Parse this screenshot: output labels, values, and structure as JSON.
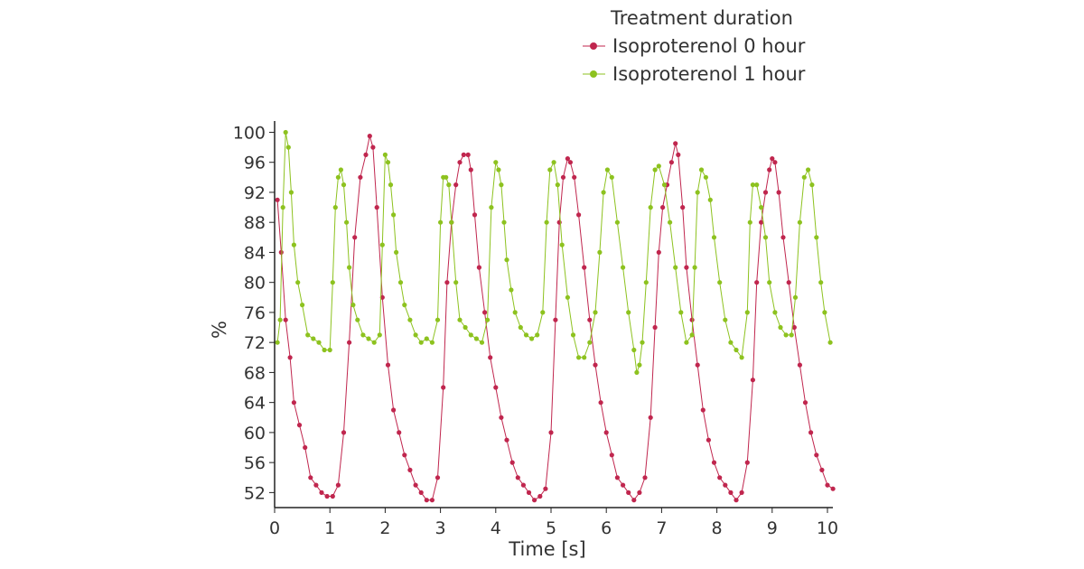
{
  "chart_data": {
    "type": "scatter",
    "title": "",
    "xlabel": "Time [s]",
    "ylabel": "%",
    "xlim": [
      0,
      10.2
    ],
    "ylim": [
      50,
      101.5
    ],
    "xticks": [
      "0",
      "1",
      "2",
      "3",
      "4",
      "5",
      "6",
      "7",
      "8",
      "9",
      "10"
    ],
    "yticks": [
      "52",
      "56",
      "60",
      "64",
      "68",
      "72",
      "76",
      "80",
      "84",
      "88",
      "92",
      "96",
      "100"
    ],
    "grid": false,
    "legend": {
      "title": "Treatment duration",
      "position": "top-right"
    },
    "series": [
      {
        "name": "Isoproterenol 0 hour",
        "color": "#C0264E",
        "x": [
          0.05,
          0.12,
          0.2,
          0.28,
          0.35,
          0.45,
          0.55,
          0.65,
          0.75,
          0.85,
          0.95,
          1.05,
          1.15,
          1.25,
          1.35,
          1.45,
          1.55,
          1.65,
          1.72,
          1.78,
          1.85,
          1.95,
          2.05,
          2.15,
          2.25,
          2.35,
          2.45,
          2.55,
          2.65,
          2.75,
          2.85,
          2.95,
          3.05,
          3.12,
          3.2,
          3.28,
          3.35,
          3.42,
          3.5,
          3.55,
          3.62,
          3.7,
          3.8,
          3.9,
          4.0,
          4.1,
          4.2,
          4.3,
          4.4,
          4.5,
          4.6,
          4.7,
          4.8,
          4.9,
          5.0,
          5.08,
          5.15,
          5.22,
          5.3,
          5.35,
          5.42,
          5.5,
          5.6,
          5.7,
          5.8,
          5.9,
          6.0,
          6.1,
          6.2,
          6.3,
          6.4,
          6.5,
          6.6,
          6.7,
          6.8,
          6.88,
          6.95,
          7.02,
          7.1,
          7.18,
          7.25,
          7.3,
          7.38,
          7.45,
          7.55,
          7.65,
          7.75,
          7.85,
          7.95,
          8.05,
          8.15,
          8.25,
          8.35,
          8.45,
          8.55,
          8.65,
          8.72,
          8.8,
          8.88,
          8.95,
          9.0,
          9.05,
          9.12,
          9.2,
          9.3,
          9.4,
          9.5,
          9.6,
          9.7,
          9.8,
          9.9,
          10.0,
          10.1
        ],
        "values": [
          91,
          84,
          75,
          70,
          64,
          61,
          58,
          54,
          53,
          52,
          51.5,
          51.5,
          53,
          60,
          72,
          86,
          94,
          97,
          99.5,
          98,
          90,
          78,
          69,
          63,
          60,
          57,
          55,
          53,
          52,
          51,
          51,
          54,
          66,
          80,
          88,
          93,
          96,
          97,
          97,
          95,
          89,
          82,
          76,
          70,
          66,
          62,
          59,
          56,
          54,
          53,
          52,
          51,
          51.5,
          52.5,
          60,
          75,
          88,
          94,
          96.5,
          96,
          94,
          89,
          82,
          75,
          69,
          64,
          60,
          57,
          54,
          53,
          52,
          51,
          52,
          54,
          62,
          74,
          84,
          90,
          93,
          96,
          98.5,
          97,
          90,
          82,
          75,
          69,
          63,
          59,
          56,
          54,
          53,
          52,
          51,
          52,
          56,
          67,
          80,
          88,
          92,
          95,
          96.5,
          96,
          92,
          86,
          80,
          74,
          69,
          64,
          60,
          57,
          55,
          53,
          52.5
        ]
      },
      {
        "name": "Isoproterenol 1 hour",
        "color": "#8DC21F",
        "x": [
          0.05,
          0.1,
          0.15,
          0.2,
          0.25,
          0.3,
          0.35,
          0.42,
          0.5,
          0.6,
          0.7,
          0.8,
          0.9,
          1.0,
          1.05,
          1.1,
          1.15,
          1.2,
          1.25,
          1.3,
          1.35,
          1.42,
          1.5,
          1.6,
          1.7,
          1.8,
          1.9,
          1.95,
          2.0,
          2.05,
          2.1,
          2.15,
          2.2,
          2.28,
          2.35,
          2.45,
          2.55,
          2.65,
          2.75,
          2.85,
          2.95,
          3.0,
          3.05,
          3.1,
          3.15,
          3.2,
          3.28,
          3.35,
          3.45,
          3.55,
          3.65,
          3.75,
          3.85,
          3.92,
          4.0,
          4.05,
          4.1,
          4.15,
          4.2,
          4.28,
          4.35,
          4.45,
          4.55,
          4.65,
          4.75,
          4.85,
          4.92,
          4.98,
          5.05,
          5.12,
          5.2,
          5.3,
          5.4,
          5.5,
          5.6,
          5.7,
          5.8,
          5.88,
          5.95,
          6.02,
          6.1,
          6.2,
          6.3,
          6.4,
          6.5,
          6.55,
          6.6,
          6.65,
          6.72,
          6.8,
          6.88,
          6.95,
          7.05,
          7.15,
          7.25,
          7.35,
          7.45,
          7.55,
          7.6,
          7.65,
          7.72,
          7.8,
          7.88,
          7.95,
          8.05,
          8.15,
          8.25,
          8.35,
          8.45,
          8.55,
          8.6,
          8.65,
          8.72,
          8.8,
          8.88,
          8.95,
          9.05,
          9.15,
          9.25,
          9.35,
          9.42,
          9.5,
          9.58,
          9.65,
          9.72,
          9.8,
          9.88,
          9.95,
          10.05
        ],
        "values": [
          72,
          75,
          90,
          100,
          98,
          92,
          85,
          80,
          77,
          73,
          72.5,
          72,
          71,
          71,
          80,
          90,
          94,
          95,
          93,
          88,
          82,
          77,
          75,
          73,
          72.5,
          72,
          73,
          85,
          97,
          96,
          93,
          89,
          84,
          80,
          77,
          75,
          73,
          72,
          72.5,
          72,
          75,
          88,
          94,
          94,
          93,
          88,
          80,
          75,
          74,
          73,
          72.5,
          72,
          75,
          90,
          96,
          95,
          93,
          88,
          83,
          79,
          76,
          74,
          73,
          72.5,
          73,
          76,
          88,
          95,
          96,
          93,
          85,
          78,
          73,
          70,
          70,
          72,
          76,
          84,
          92,
          95,
          94,
          88,
          82,
          76,
          71,
          68,
          69,
          72,
          80,
          90,
          95,
          95.5,
          93,
          88,
          82,
          76,
          72,
          73,
          82,
          92,
          95,
          94,
          91,
          86,
          80,
          75,
          72,
          71,
          70,
          76,
          88,
          93,
          93,
          90,
          86,
          80,
          76,
          74,
          73,
          73,
          78,
          88,
          94,
          95,
          93,
          86,
          80,
          76,
          72
        ]
      }
    ]
  }
}
